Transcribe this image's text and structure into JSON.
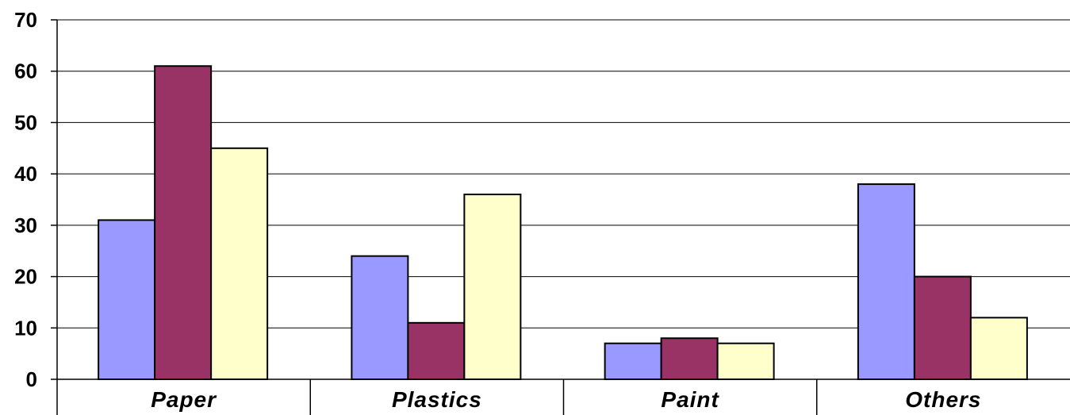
{
  "chart_data": {
    "type": "bar",
    "categories": [
      "Paper",
      "Plastics",
      "Paint",
      "Others"
    ],
    "series": [
      {
        "values": [
          31,
          24,
          7,
          38
        ],
        "color": "#9999FF"
      },
      {
        "values": [
          61,
          11,
          8,
          20
        ],
        "color": "#993366"
      },
      {
        "values": [
          45,
          36,
          7,
          12
        ],
        "color": "#FFFFCC"
      }
    ],
    "yticks": [
      "0",
      "10",
      "20",
      "30",
      "40",
      "50",
      "60",
      "70"
    ],
    "ylim": [
      0,
      70
    ],
    "grid": true,
    "legend": "none"
  }
}
